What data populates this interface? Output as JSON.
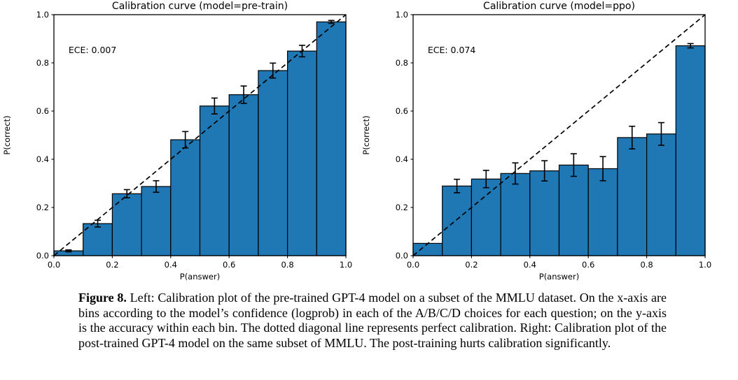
{
  "figure": {
    "caption_label": "Figure 8.",
    "caption_text": " Left: Calibration plot of the pre-trained GPT-4 model on a subset of the MMLU dataset. On the x-axis are bins according to the model’s confidence (logprob) in each of the A/B/C/D choices for each question; on the y-axis is the accuracy within each bin. The dotted diagonal line represents perfect calibration. Right: Calibration plot of the post-trained GPT-4 model on the same subset of MMLU. The post-training hurts calibration significantly."
  },
  "colors": {
    "background": "#ffffff",
    "bar_fill": "#1f77b4",
    "bar_edge": "#000000",
    "error_bar": "#000000",
    "diagonal": "#000000",
    "text": "#000000",
    "axis": "#000000"
  },
  "chart_data": [
    {
      "type": "bar",
      "title": "Calibration curve (model=pre-train)",
      "xlabel": "P(answer)",
      "ylabel": "P(correct)",
      "annotation": "ECE: 0.007",
      "annotation_xy": [
        0.05,
        0.84
      ],
      "xlim": [
        0.0,
        1.0
      ],
      "ylim": [
        0.0,
        1.0
      ],
      "grid": false,
      "diagonal_line": true,
      "bin_edges": [
        0.0,
        0.1,
        0.2,
        0.3,
        0.4,
        0.5,
        0.6,
        0.7,
        0.8,
        0.9,
        1.0
      ],
      "values": [
        0.02,
        0.133,
        0.257,
        0.287,
        0.481,
        0.621,
        0.668,
        0.768,
        0.849,
        0.97
      ],
      "errors": [
        0.004,
        0.014,
        0.017,
        0.024,
        0.034,
        0.033,
        0.036,
        0.031,
        0.024,
        0.006
      ],
      "xticks": [
        {
          "v": 0.0,
          "label": "0.0"
        },
        {
          "v": 0.2,
          "label": "0.2"
        },
        {
          "v": 0.4,
          "label": "0.4"
        },
        {
          "v": 0.6,
          "label": "0.6"
        },
        {
          "v": 0.8,
          "label": "0.8"
        },
        {
          "v": 1.0,
          "label": "1.0"
        }
      ],
      "yticks": [
        {
          "v": 0.0,
          "label": "0.0"
        },
        {
          "v": 0.2,
          "label": "0.2"
        },
        {
          "v": 0.4,
          "label": "0.4"
        },
        {
          "v": 0.6,
          "label": "0.6"
        },
        {
          "v": 0.8,
          "label": "0.8"
        },
        {
          "v": 1.0,
          "label": "1.0"
        }
      ]
    },
    {
      "type": "bar",
      "title": "Calibration curve (model=ppo)",
      "xlabel": "P(answer)",
      "ylabel": "P(correct)",
      "annotation": "ECE: 0.074",
      "annotation_xy": [
        0.05,
        0.84
      ],
      "xlim": [
        0.0,
        1.0
      ],
      "ylim": [
        0.0,
        1.0
      ],
      "grid": false,
      "diagonal_line": true,
      "bin_edges": [
        0.0,
        0.1,
        0.2,
        0.3,
        0.4,
        0.5,
        0.6,
        0.7,
        0.8,
        0.9,
        1.0
      ],
      "values": [
        0.051,
        0.289,
        0.318,
        0.341,
        0.352,
        0.376,
        0.361,
        0.49,
        0.505,
        0.871
      ],
      "errors": [
        0.0,
        0.028,
        0.036,
        0.044,
        0.042,
        0.047,
        0.05,
        0.047,
        0.047,
        0.009
      ],
      "xticks": [
        {
          "v": 0.0,
          "label": "0.0"
        },
        {
          "v": 0.2,
          "label": "0.2"
        },
        {
          "v": 0.4,
          "label": "0.4"
        },
        {
          "v": 0.6,
          "label": "0.6"
        },
        {
          "v": 0.8,
          "label": "0.8"
        },
        {
          "v": 1.0,
          "label": "1.0"
        }
      ],
      "yticks": [
        {
          "v": 0.0,
          "label": "0.0"
        },
        {
          "v": 0.2,
          "label": "0.2"
        },
        {
          "v": 0.4,
          "label": "0.4"
        },
        {
          "v": 0.6,
          "label": "0.6"
        },
        {
          "v": 0.8,
          "label": "0.8"
        },
        {
          "v": 1.0,
          "label": "1.0"
        }
      ]
    }
  ]
}
